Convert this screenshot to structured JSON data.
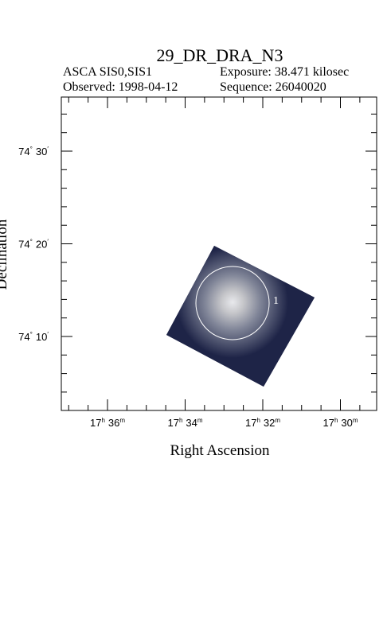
{
  "header": {
    "title": "29_DR_DRA_N3",
    "instrument": "ASCA SIS0,SIS1",
    "exposure": "Exposure: 38.471 kilosec",
    "observed": "Observed: 1998-04-12",
    "sequence": "Sequence: 26040020"
  },
  "axes": {
    "x_label": "Right Ascension",
    "y_label": "Declination",
    "x_ticks": [
      {
        "hour": "17",
        "hour_unit": "h",
        "minute": "36",
        "minute_unit": "m"
      },
      {
        "hour": "17",
        "hour_unit": "h",
        "minute": "34",
        "minute_unit": "m"
      },
      {
        "hour": "17",
        "hour_unit": "h",
        "minute": "32",
        "minute_unit": "m"
      },
      {
        "hour": "17",
        "hour_unit": "h",
        "minute": "30",
        "minute_unit": "m"
      }
    ],
    "y_ticks": [
      {
        "degree": "74",
        "degree_unit": "°",
        "arcmin": "30",
        "arcmin_unit": "′"
      },
      {
        "degree": "74",
        "degree_unit": "°",
        "arcmin": "20",
        "arcmin_unit": "′"
      },
      {
        "degree": "74",
        "degree_unit": "°",
        "arcmin": "10",
        "arcmin_unit": "′"
      }
    ]
  },
  "source": {
    "label": "1"
  }
}
